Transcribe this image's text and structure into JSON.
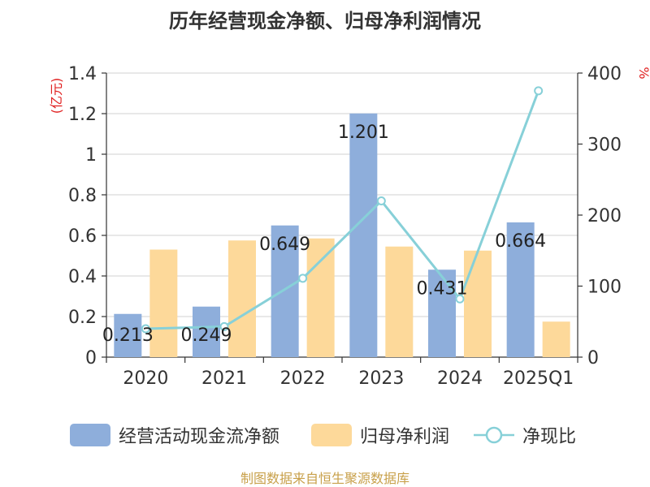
{
  "title": "历年经营现金净额、归母净利润情况",
  "source": "制图数据来自恒生聚源数据库",
  "colors": {
    "cash_flow": "#8eaedb",
    "net_profit": "#fdd99a",
    "ratio": "#87d0d8",
    "axis_label_left": "#e02020",
    "axis_label_right": "#e02020",
    "source_text": "#c8a04a"
  },
  "chart_data": {
    "type": "bar",
    "categories": [
      "2020",
      "2021",
      "2022",
      "2023",
      "2024",
      "2025Q1"
    ],
    "series": [
      {
        "name": "经营活动现金流净额",
        "axis": "left",
        "type": "bar",
        "values": [
          0.213,
          0.249,
          0.649,
          1.201,
          0.431,
          0.664
        ],
        "data_labels": [
          "0.213",
          "0.249",
          "0.649",
          "1.201",
          "0.431",
          "0.664"
        ]
      },
      {
        "name": "归母净利润",
        "axis": "left",
        "type": "bar",
        "values": [
          0.53,
          0.575,
          0.585,
          0.545,
          0.525,
          0.175
        ]
      },
      {
        "name": "净现比",
        "axis": "right",
        "type": "line",
        "values": [
          40,
          43,
          111,
          220,
          82,
          375
        ]
      }
    ],
    "y_left": {
      "label": "(亿元)",
      "ylim": [
        0,
        1.4
      ],
      "ticks": [
        0,
        0.2,
        0.4,
        0.6,
        0.8,
        1,
        1.2,
        1.4
      ],
      "tick_labels": [
        "0",
        "0.2",
        "0.4",
        "0.6",
        "0.8",
        "1",
        "1.2",
        "1.4"
      ]
    },
    "y_right": {
      "label": "%",
      "ylim": [
        0,
        400
      ],
      "ticks": [
        0,
        100,
        200,
        300,
        400
      ],
      "tick_labels": [
        "0",
        "100",
        "200",
        "300",
        "400"
      ]
    },
    "grid": true,
    "legend_position": "bottom"
  }
}
